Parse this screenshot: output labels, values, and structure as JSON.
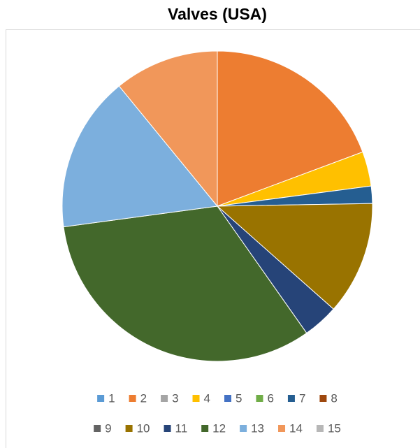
{
  "chart_data": {
    "type": "pie",
    "title": "Valves (USA)",
    "categories": [
      "1",
      "2",
      "3",
      "4",
      "5",
      "6",
      "7",
      "8",
      "9",
      "10",
      "11",
      "12",
      "13",
      "14",
      "15"
    ],
    "values": [
      0,
      19.3,
      0,
      3.6,
      0,
      0,
      1.8,
      0,
      0,
      11.8,
      3.7,
      32.6,
      16.2,
      10.9,
      0
    ],
    "colors": [
      "#5b9bd5",
      "#ed7d31",
      "#a5a5a5",
      "#ffc000",
      "#4472c4",
      "#70ad47",
      "#255e91",
      "#9e480e",
      "#636363",
      "#997300",
      "#264478",
      "#43682b",
      "#7cafdd",
      "#f1975a",
      "#b7b7b7"
    ],
    "legend": "bottom"
  }
}
